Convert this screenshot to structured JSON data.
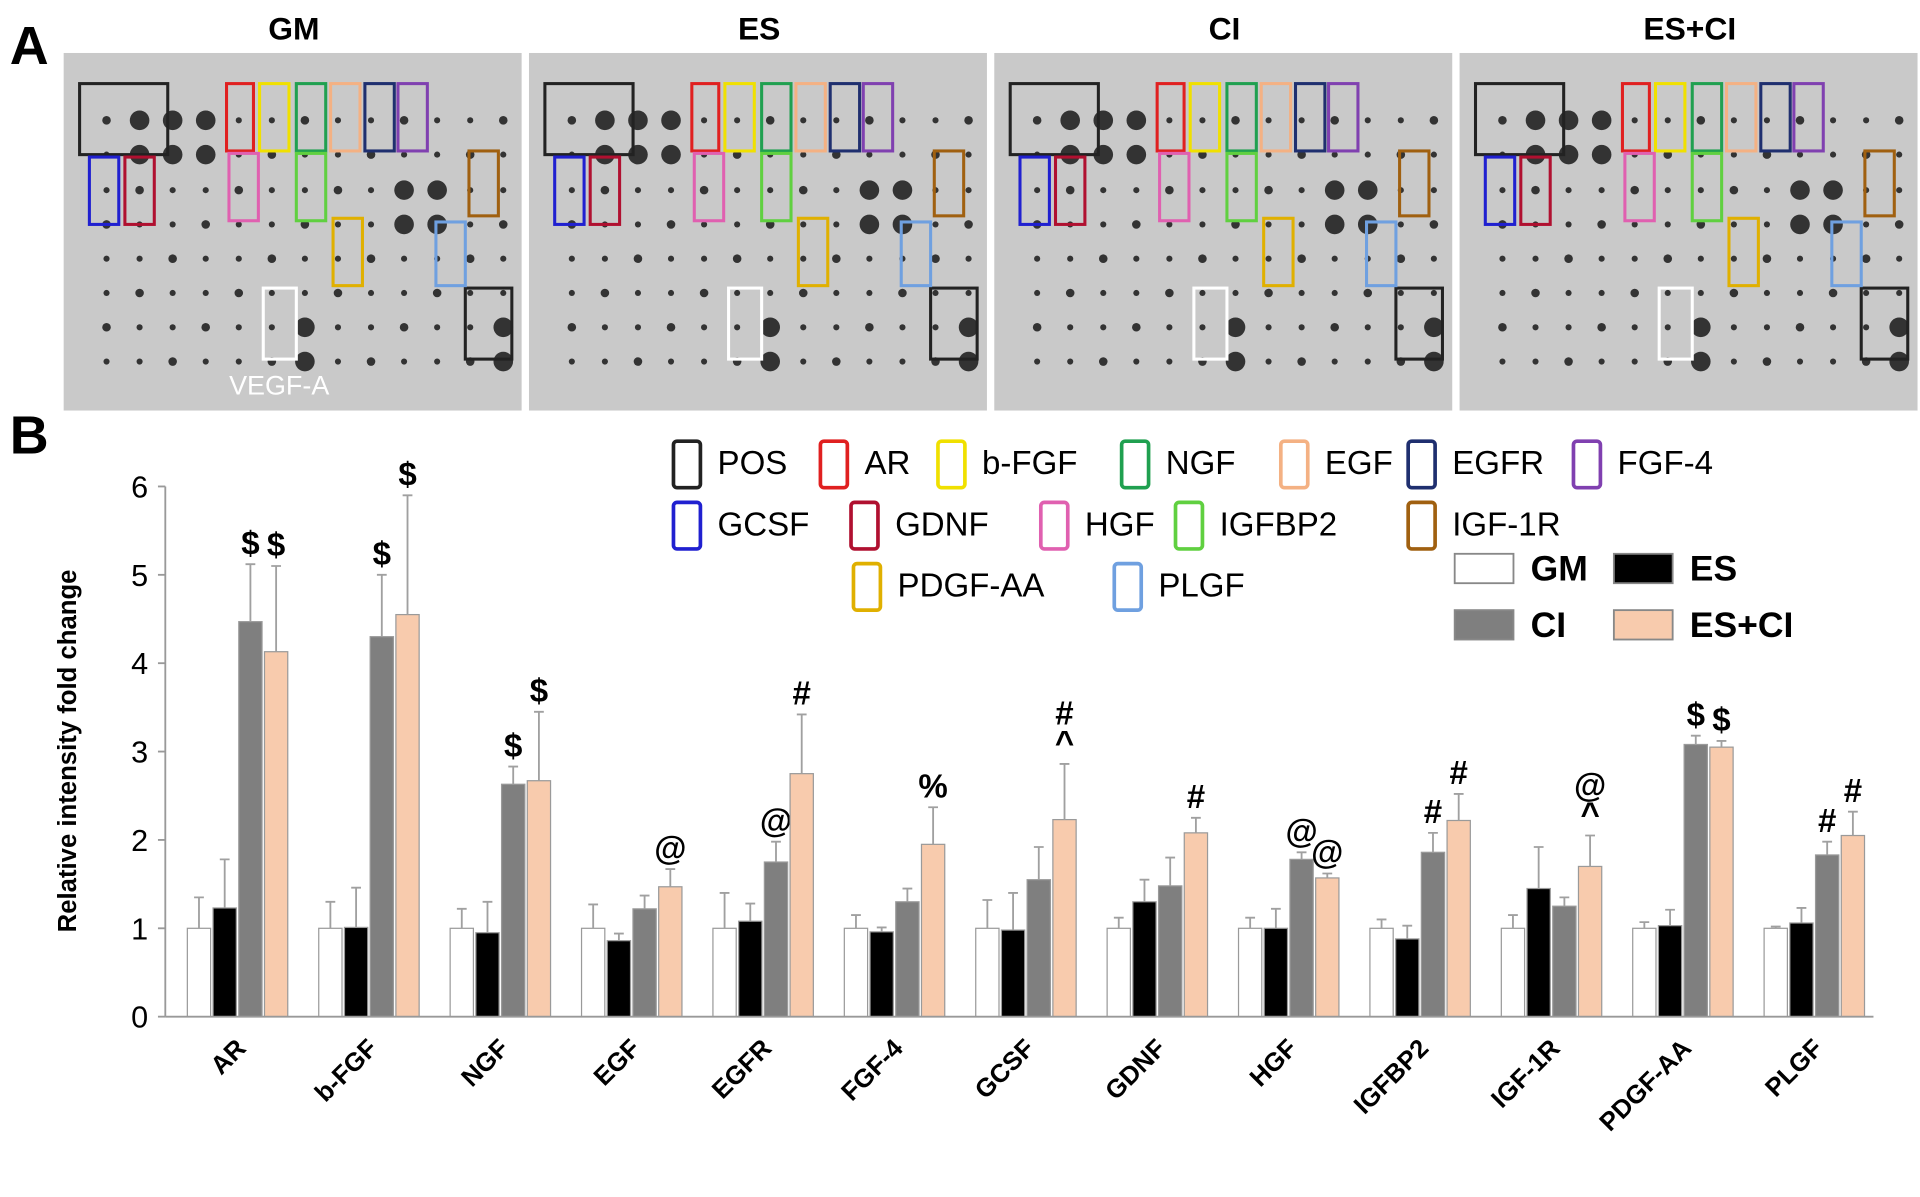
{
  "panel_a": {
    "label": "A",
    "titles": [
      "GM",
      "ES",
      "CI",
      "ES+CI"
    ],
    "annotation": "VEGF-A",
    "box_legend": [
      {
        "name": "POS",
        "color": "#222222"
      },
      {
        "name": "AR",
        "color": "#e02020"
      },
      {
        "name": "b-FGF",
        "color": "#f0e000"
      },
      {
        "name": "NGF",
        "color": "#20a050"
      },
      {
        "name": "EGF",
        "color": "#f4b183"
      },
      {
        "name": "EGFR",
        "color": "#1f2f6f"
      },
      {
        "name": "FGF-4",
        "color": "#8040b0"
      },
      {
        "name": "GCSF",
        "color": "#2020d0"
      },
      {
        "name": "GDNF",
        "color": "#b01030"
      },
      {
        "name": "HGF",
        "color": "#e060b0"
      },
      {
        "name": "IGFBP2",
        "color": "#60d040"
      },
      {
        "name": "IGF-1R",
        "color": "#a06010"
      },
      {
        "name": "PDGF-AA",
        "color": "#e0b000"
      },
      {
        "name": "PLGF",
        "color": "#6fa0e0"
      }
    ]
  },
  "chart_data": {
    "type": "bar",
    "panel_label": "B",
    "ylabel": "Relative intensity fold change",
    "categories": [
      "AR",
      "b-FGF",
      "NGF",
      "EGF",
      "EGFR",
      "FGF-4",
      "GCSF",
      "GDNF",
      "HGF",
      "IGFBP2",
      "IGF-1R",
      "PDGF-AA",
      "PLGF"
    ],
    "ylim": [
      0,
      6
    ],
    "yticks": [
      0,
      1,
      2,
      3,
      4,
      5,
      6
    ],
    "series": [
      {
        "name": "GM",
        "color": "#ffffff",
        "values": [
          1,
          1,
          1,
          1,
          1,
          1,
          1,
          1,
          1,
          1,
          1,
          1,
          1
        ],
        "errors": [
          0.35,
          0.3,
          0.22,
          0.27,
          0.4,
          0.15,
          0.32,
          0.12,
          0.12,
          0.1,
          0.15,
          0.07,
          0.02
        ]
      },
      {
        "name": "ES",
        "color": "#000000",
        "values": [
          1.23,
          1.01,
          0.95,
          0.86,
          1.08,
          0.96,
          0.98,
          1.3,
          1.0,
          0.88,
          1.45,
          1.03,
          1.06
        ],
        "errors": [
          0.55,
          0.45,
          0.35,
          0.08,
          0.2,
          0.05,
          0.42,
          0.25,
          0.22,
          0.15,
          0.47,
          0.18,
          0.17
        ]
      },
      {
        "name": "CI",
        "color": "#7f7f7f",
        "values": [
          4.47,
          4.3,
          2.63,
          1.22,
          1.75,
          1.3,
          1.55,
          1.48,
          1.78,
          1.86,
          1.25,
          3.08,
          1.83
        ],
        "errors": [
          0.65,
          0.7,
          0.2,
          0.15,
          0.23,
          0.15,
          0.37,
          0.32,
          0.08,
          0.22,
          0.1,
          0.1,
          0.15
        ],
        "markers": [
          [
            "$"
          ],
          [
            "$"
          ],
          [
            "$"
          ],
          null,
          [
            "@"
          ],
          null,
          null,
          null,
          [
            "@"
          ],
          [
            "#"
          ],
          null,
          [
            "$"
          ],
          [
            "#"
          ]
        ]
      },
      {
        "name": "ES+CI",
        "color": "#f8cbad",
        "values": [
          4.13,
          4.55,
          2.67,
          1.47,
          2.75,
          1.95,
          2.23,
          2.08,
          1.57,
          2.22,
          1.7,
          3.05,
          2.05
        ],
        "errors": [
          0.97,
          1.35,
          0.78,
          0.2,
          0.67,
          0.42,
          0.63,
          0.17,
          0.05,
          0.3,
          0.35,
          0.07,
          0.27
        ],
        "markers": [
          [
            "$"
          ],
          [
            "$"
          ],
          [
            "$"
          ],
          [
            "@"
          ],
          [
            "#"
          ],
          [
            "%"
          ],
          [
            "#",
            "^"
          ],
          [
            "#"
          ],
          [
            "@"
          ],
          [
            "#"
          ],
          [
            "@",
            "^"
          ],
          [
            "$"
          ],
          [
            "#"
          ]
        ]
      }
    ]
  }
}
